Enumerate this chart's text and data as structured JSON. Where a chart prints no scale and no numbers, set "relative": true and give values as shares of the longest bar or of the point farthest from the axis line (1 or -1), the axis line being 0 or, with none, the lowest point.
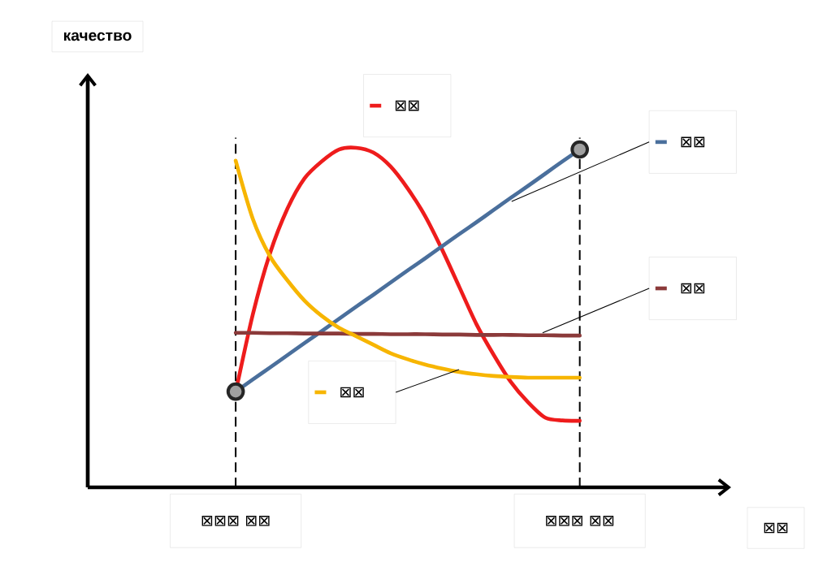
{
  "chart_data": {
    "type": "line",
    "relative": true,
    "annotations": [
      "качество",
      "⊠⊠"
    ],
    "grid": "x",
    "categories": [
      "⊠⊠⊠ ⊠⊠",
      null,
      null,
      null,
      null,
      null,
      null,
      null,
      null,
      null,
      null,
      null,
      null,
      null,
      null,
      null,
      null,
      null,
      null,
      null,
      "⊠⊠⊠ ⊠⊠"
    ],
    "series": [
      {
        "name": "⊠⊠",
        "color": "#ee1c1c",
        "values": [
          0.28,
          0.51,
          0.69,
          0.82,
          0.91,
          0.96,
          0.995,
          1,
          0.986,
          0.945,
          0.88,
          0.8,
          0.7,
          0.59,
          0.48,
          0.39,
          0.31,
          0.25,
          0.205,
          0.197,
          0.196
        ]
      },
      {
        "name": "⊠⊠",
        "color": "#4a6f9c",
        "values": [
          0.282,
          0.318,
          0.353,
          0.389,
          0.425,
          0.46,
          0.496,
          0.532,
          0.567,
          0.603,
          0.639,
          0.674,
          0.71,
          0.746,
          0.781,
          0.817,
          0.853,
          0.888,
          0.924,
          0.96,
          0.995
        ]
      },
      {
        "name": "⊠⊠",
        "color": "#8b3a3a",
        "values": [
          0.455,
          0.455,
          0.454,
          0.454,
          0.453,
          0.453,
          0.453,
          0.452,
          0.452,
          0.451,
          0.451,
          0.451,
          0.45,
          0.45,
          0.449,
          0.449,
          0.449,
          0.448,
          0.448,
          0.447,
          0.447
        ]
      },
      {
        "name": "⊠⊠",
        "color": "#f7b500",
        "values": [
          0.962,
          0.79,
          0.68,
          0.61,
          0.55,
          0.505,
          0.47,
          0.445,
          0.42,
          0.395,
          0.377,
          0.362,
          0.35,
          0.34,
          0.333,
          0.328,
          0.325,
          0.323,
          0.323,
          0.323,
          0.323
        ]
      },
      {
        "type": "scatter",
        "marker": "circle",
        "color": "#a0a0a0",
        "values": [
          0.282,
          null,
          null,
          null,
          null,
          null,
          null,
          null,
          null,
          null,
          null,
          null,
          null,
          null,
          null,
          null,
          null,
          null,
          null,
          null,
          0.995
        ]
      }
    ]
  }
}
